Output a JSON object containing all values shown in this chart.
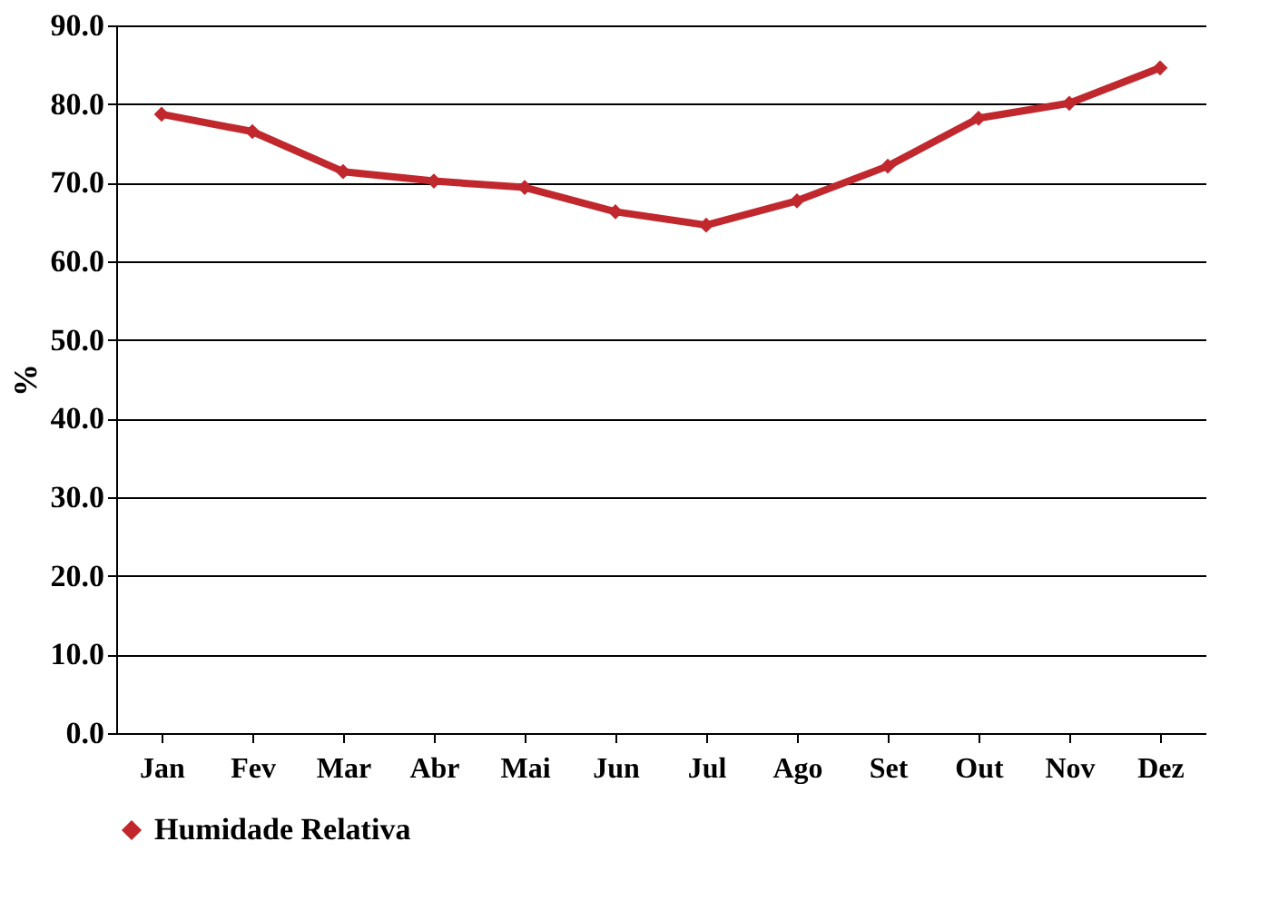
{
  "chart_data": {
    "type": "line",
    "ylabel": "%",
    "categories": [
      "Jan",
      "Fev",
      "Mar",
      "Abr",
      "Mai",
      "Jun",
      "Jul",
      "Ago",
      "Set",
      "Out",
      "Nov",
      "Dez"
    ],
    "series": [
      {
        "name": "Humidade Relativa",
        "color": "#c0282d",
        "values": [
          78.7,
          76.5,
          71.4,
          70.2,
          69.4,
          66.3,
          64.6,
          67.7,
          72.1,
          78.2,
          80.1,
          84.6
        ]
      }
    ],
    "ylim": [
      0,
      90
    ],
    "yticks": [
      {
        "value": 0,
        "label": "0.0"
      },
      {
        "value": 10,
        "label": "10.0"
      },
      {
        "value": 20,
        "label": "20.0"
      },
      {
        "value": 30,
        "label": "30.0"
      },
      {
        "value": 40,
        "label": "40.0"
      },
      {
        "value": 50,
        "label": "50.0"
      },
      {
        "value": 60,
        "label": "60.0"
      },
      {
        "value": 70,
        "label": "70.0"
      },
      {
        "value": 80,
        "label": "80.0"
      },
      {
        "value": 90,
        "label": "90.0"
      }
    ],
    "grid": "y",
    "legend": "bottom",
    "marker": "diamond",
    "line_style": "solid"
  }
}
